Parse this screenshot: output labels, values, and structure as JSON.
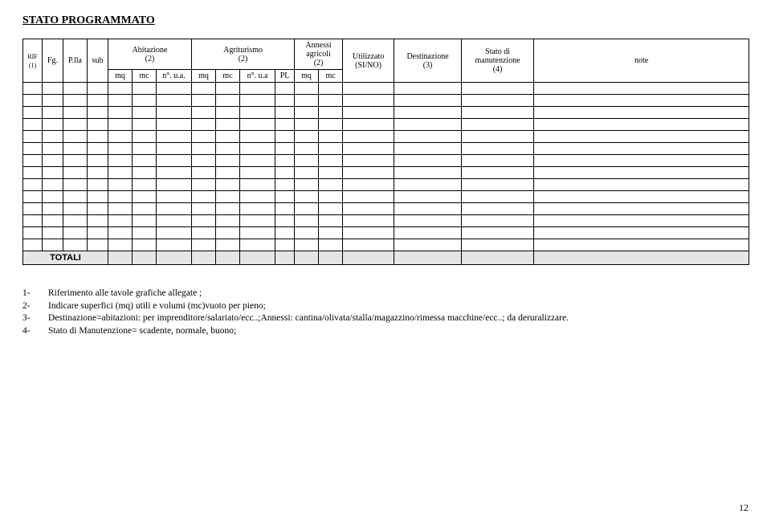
{
  "title": "STATO PROGRAMMATO",
  "headers": {
    "rif": "RIF\n(1)",
    "fg": "Fg.",
    "plla": "P.lla",
    "sub": "sub",
    "abitazione": "Abitazione\n(2)",
    "agriturismo": "Agriturismo\n(2)",
    "annessi": "Annessi\nagricoli\n(2)",
    "utilizzato": "Utilizzato\n(SI/NO)",
    "destinazione": "Destinazione\n(3)",
    "stato": "Stato di\nmanutenzione\n(4)",
    "note": "note"
  },
  "subheaders": {
    "mq": "mq",
    "mc": "mc",
    "nua": "n°. u.a.",
    "nua2": "n°. u.a",
    "pl": "PL"
  },
  "totali": "TOTALI",
  "notes": [
    {
      "n": "1-",
      "t": "Riferimento alle tavole grafiche allegate ;"
    },
    {
      "n": "2-",
      "t": "Indicare superfici (mq) utili e volumi (mc)vuoto per pieno;"
    },
    {
      "n": "3-",
      "t": "Destinazione=abitazioni: per imprenditore/salariato/ecc..;Annessi: cantina/olivata/stalla/magazzino/rimessa macchine/ecc..; da deruralizzare."
    },
    {
      "n": "4-",
      "t": "Stato di Manutenzione= scadente, normale, buono;"
    }
  ],
  "pageNumber": "12",
  "colors": {
    "totaliBg": "#e6e6e6",
    "border": "#000000",
    "text": "#000000",
    "bg": "#ffffff"
  },
  "colwidths": {
    "rif": 24,
    "fg": 26,
    "plla": 30,
    "sub": 26,
    "abit_mq": 30,
    "abit_mc": 30,
    "abit_nua": 44,
    "agri_mq": 30,
    "agri_mc": 30,
    "agri_nua": 44,
    "agri_pl": 24,
    "ann_mq": 30,
    "ann_mc": 30,
    "util": 64,
    "dest": 84,
    "stato": 90,
    "note": 268
  },
  "emptyRows": 13
}
